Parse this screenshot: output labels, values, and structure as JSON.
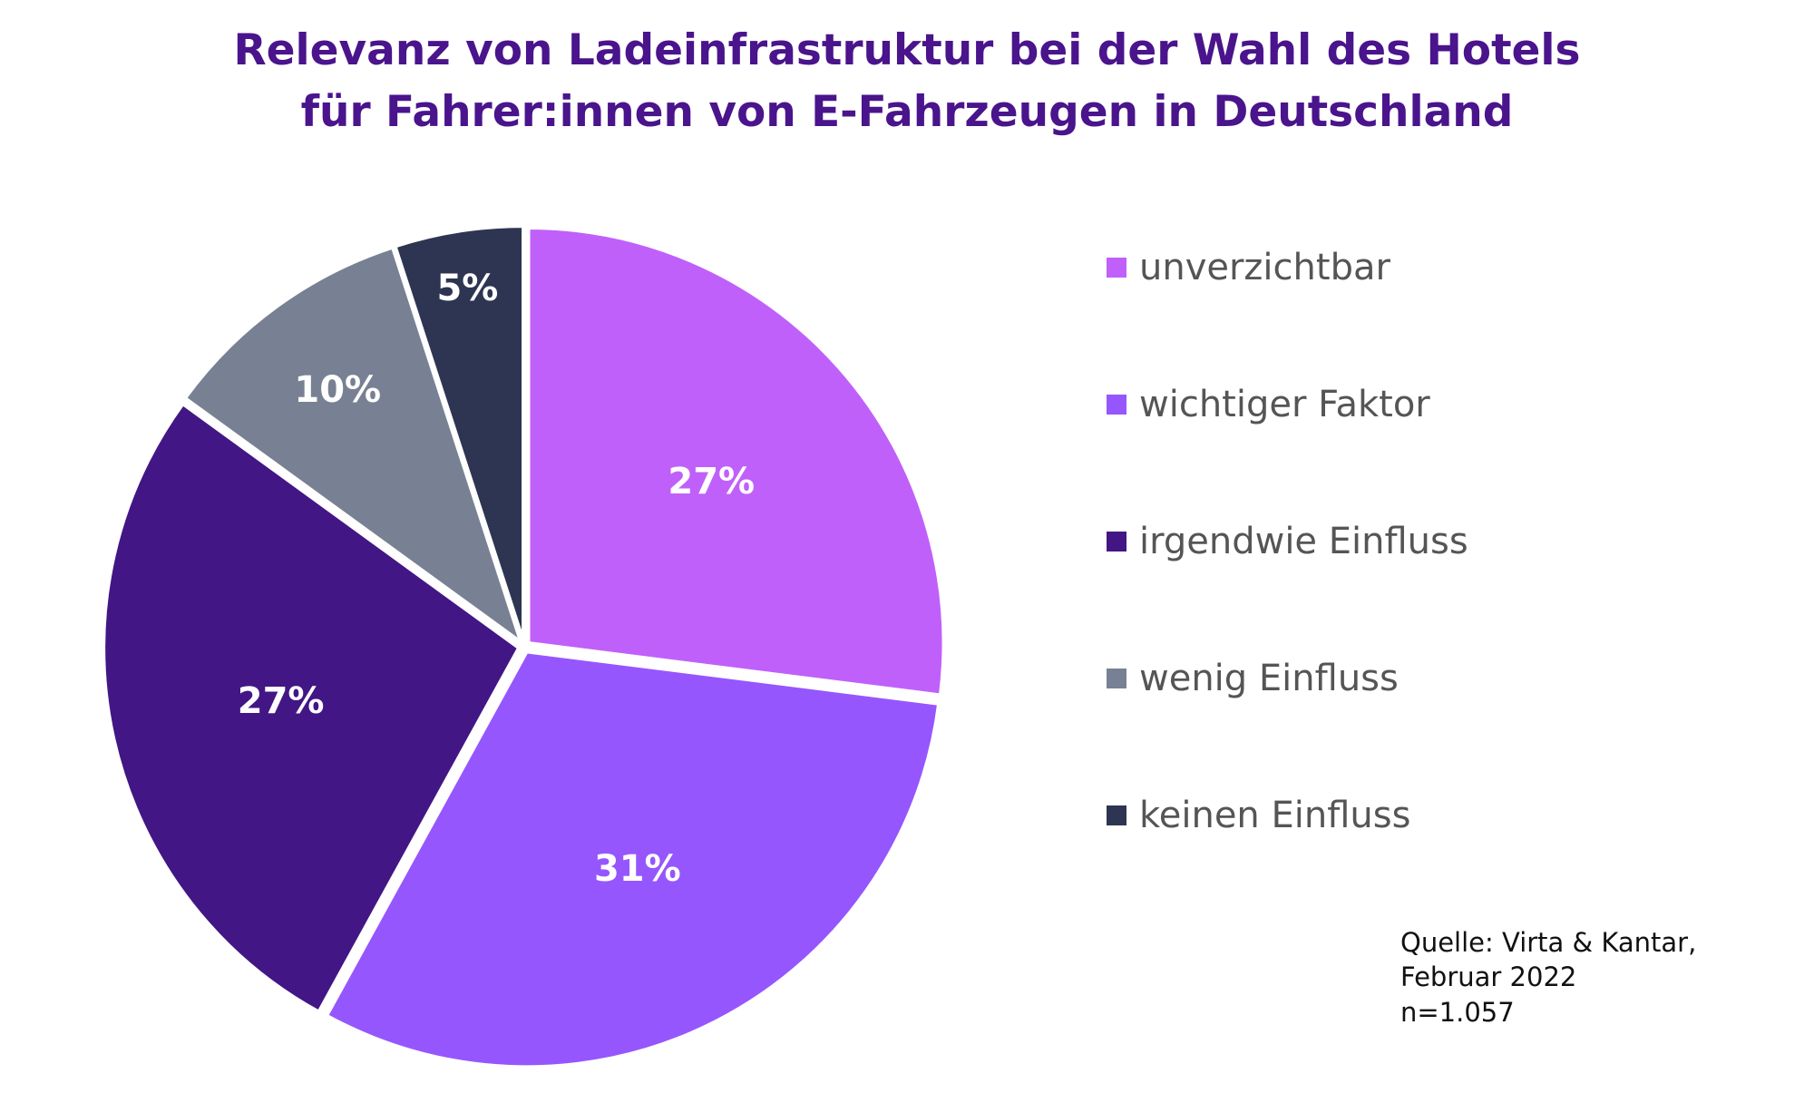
{
  "title": {
    "line1": "Relevanz von Ladeinfrastruktur bei der Wahl des Hotels",
    "line2": "für Fahrer:innen von E-Fahrzeugen in Deutschland"
  },
  "chart_data": {
    "type": "pie",
    "title": "Relevanz von Ladeinfrastruktur bei der Wahl des Hotels für Fahrer:innen von E-Fahrzeugen in Deutschland",
    "categories": [
      "unverzichtbar",
      "wichtiger Faktor",
      "irgendwie Einfluss",
      "wenig Einfluss",
      "keinen Einfluss"
    ],
    "values": [
      27,
      31,
      27,
      10,
      5
    ],
    "data_labels": [
      "27%",
      "31%",
      "27%",
      "10%",
      "5%"
    ],
    "colors": [
      "#c060fa",
      "#9656fd",
      "#421685",
      "#788193",
      "#2d3552"
    ],
    "legend_position": "right"
  },
  "legend": {
    "items": [
      {
        "label": "unverzichtbar",
        "color": "#c060fa"
      },
      {
        "label": "wichtiger Faktor",
        "color": "#9656fd"
      },
      {
        "label": "irgendwie Einfluss",
        "color": "#421685"
      },
      {
        "label": "wenig Einfluss",
        "color": "#788193"
      },
      {
        "label": "keinen Einfluss",
        "color": "#2d3552"
      }
    ]
  },
  "source": {
    "line1": "Quelle: Virta & Kantar,",
    "line2": "Februar 2022",
    "line3": "n=1.057"
  }
}
